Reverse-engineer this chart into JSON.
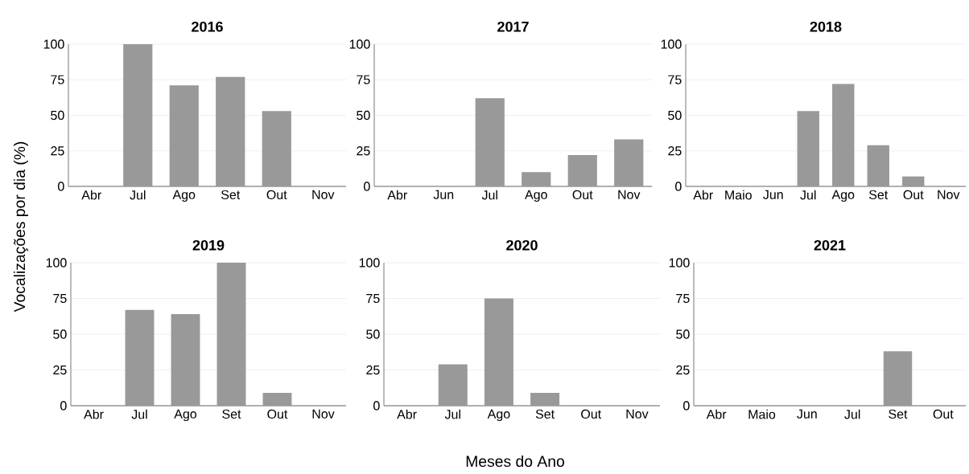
{
  "chart_data": [
    {
      "type": "bar",
      "title": "2016",
      "ylabel": "Vocalizações por dia (%)",
      "categories": [
        "Abr",
        "Jul",
        "Ago",
        "Set",
        "Out",
        "Nov"
      ],
      "values": [
        0,
        100,
        71,
        77,
        53,
        0
      ],
      "color": "#999999",
      "ylim": [
        0,
        100
      ],
      "yticks": [
        0,
        25,
        50,
        75,
        100
      ],
      "grid": "y"
    },
    {
      "type": "bar",
      "title": "2017",
      "categories": [
        "Abr",
        "Jun",
        "Jul",
        "Ago",
        "Out",
        "Nov"
      ],
      "values": [
        0,
        0,
        62,
        10,
        22,
        33
      ],
      "color": "#999999",
      "ylim": [
        0,
        100
      ],
      "yticks": [
        0,
        25,
        50,
        75,
        100
      ],
      "grid": "y"
    },
    {
      "type": "bar",
      "title": "2018",
      "categories": [
        "Abr",
        "Maio",
        "Jun",
        "Jul",
        "Ago",
        "Set",
        "Out",
        "Nov"
      ],
      "values": [
        0,
        0,
        0,
        53,
        72,
        29,
        7,
        0
      ],
      "color": "#999999",
      "ylim": [
        0,
        100
      ],
      "yticks": [
        0,
        25,
        50,
        75,
        100
      ],
      "grid": "y"
    },
    {
      "type": "bar",
      "title": "2019",
      "categories": [
        "Abr",
        "Jul",
        "Ago",
        "Set",
        "Out",
        "Nov"
      ],
      "values": [
        0,
        67,
        64,
        100,
        9,
        0
      ],
      "color": "#999999",
      "ylim": [
        0,
        100
      ],
      "yticks": [
        0,
        25,
        50,
        75,
        100
      ],
      "grid": "y"
    },
    {
      "type": "bar",
      "title": "2020",
      "xlabel": "Meses do Ano",
      "categories": [
        "Abr",
        "Jul",
        "Ago",
        "Set",
        "Out",
        "Nov"
      ],
      "values": [
        0,
        29,
        75,
        9,
        0,
        0
      ],
      "color": "#999999",
      "ylim": [
        0,
        100
      ],
      "yticks": [
        0,
        25,
        50,
        75,
        100
      ],
      "grid": "y"
    },
    {
      "type": "bar",
      "title": "2021",
      "categories": [
        "Abr",
        "Maio",
        "Jun",
        "Jul",
        "Set",
        "Out"
      ],
      "values": [
        0,
        0,
        0,
        0,
        38,
        0
      ],
      "color": "#999999",
      "ylim": [
        0,
        100
      ],
      "yticks": [
        0,
        25,
        50,
        75,
        100
      ],
      "grid": "y"
    }
  ]
}
